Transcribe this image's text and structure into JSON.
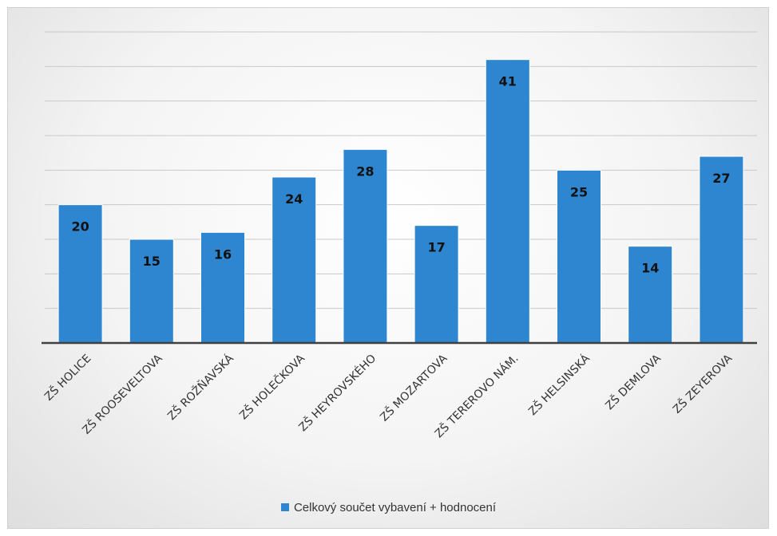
{
  "chart_data": {
    "type": "bar",
    "categories": [
      "ZŠ HOLICE",
      "ZŠ ROOSEVELTOVA",
      "ZŠ ROŽŇAVSKÁ",
      "ZŠ HOLEČKOVA",
      "ZŠ HEYROVSKÉHO",
      "ZŠ MOZARTOVA",
      "ZŠ TEREROVO NÁM.",
      "ZŠ HELSINSKÁ",
      "ZŠ DEMLOVA",
      "ZŠ ZEYEROVA"
    ],
    "series": [
      {
        "name": "Celkový součet vybavení + hodnocení",
        "values": [
          20,
          15,
          16,
          24,
          28,
          17,
          41,
          25,
          14,
          27
        ]
      }
    ],
    "ylim": [
      0,
      45
    ],
    "gridlines": true,
    "legend_position": "bottom",
    "bar_color": "#2e86d1",
    "data_labels": true
  }
}
